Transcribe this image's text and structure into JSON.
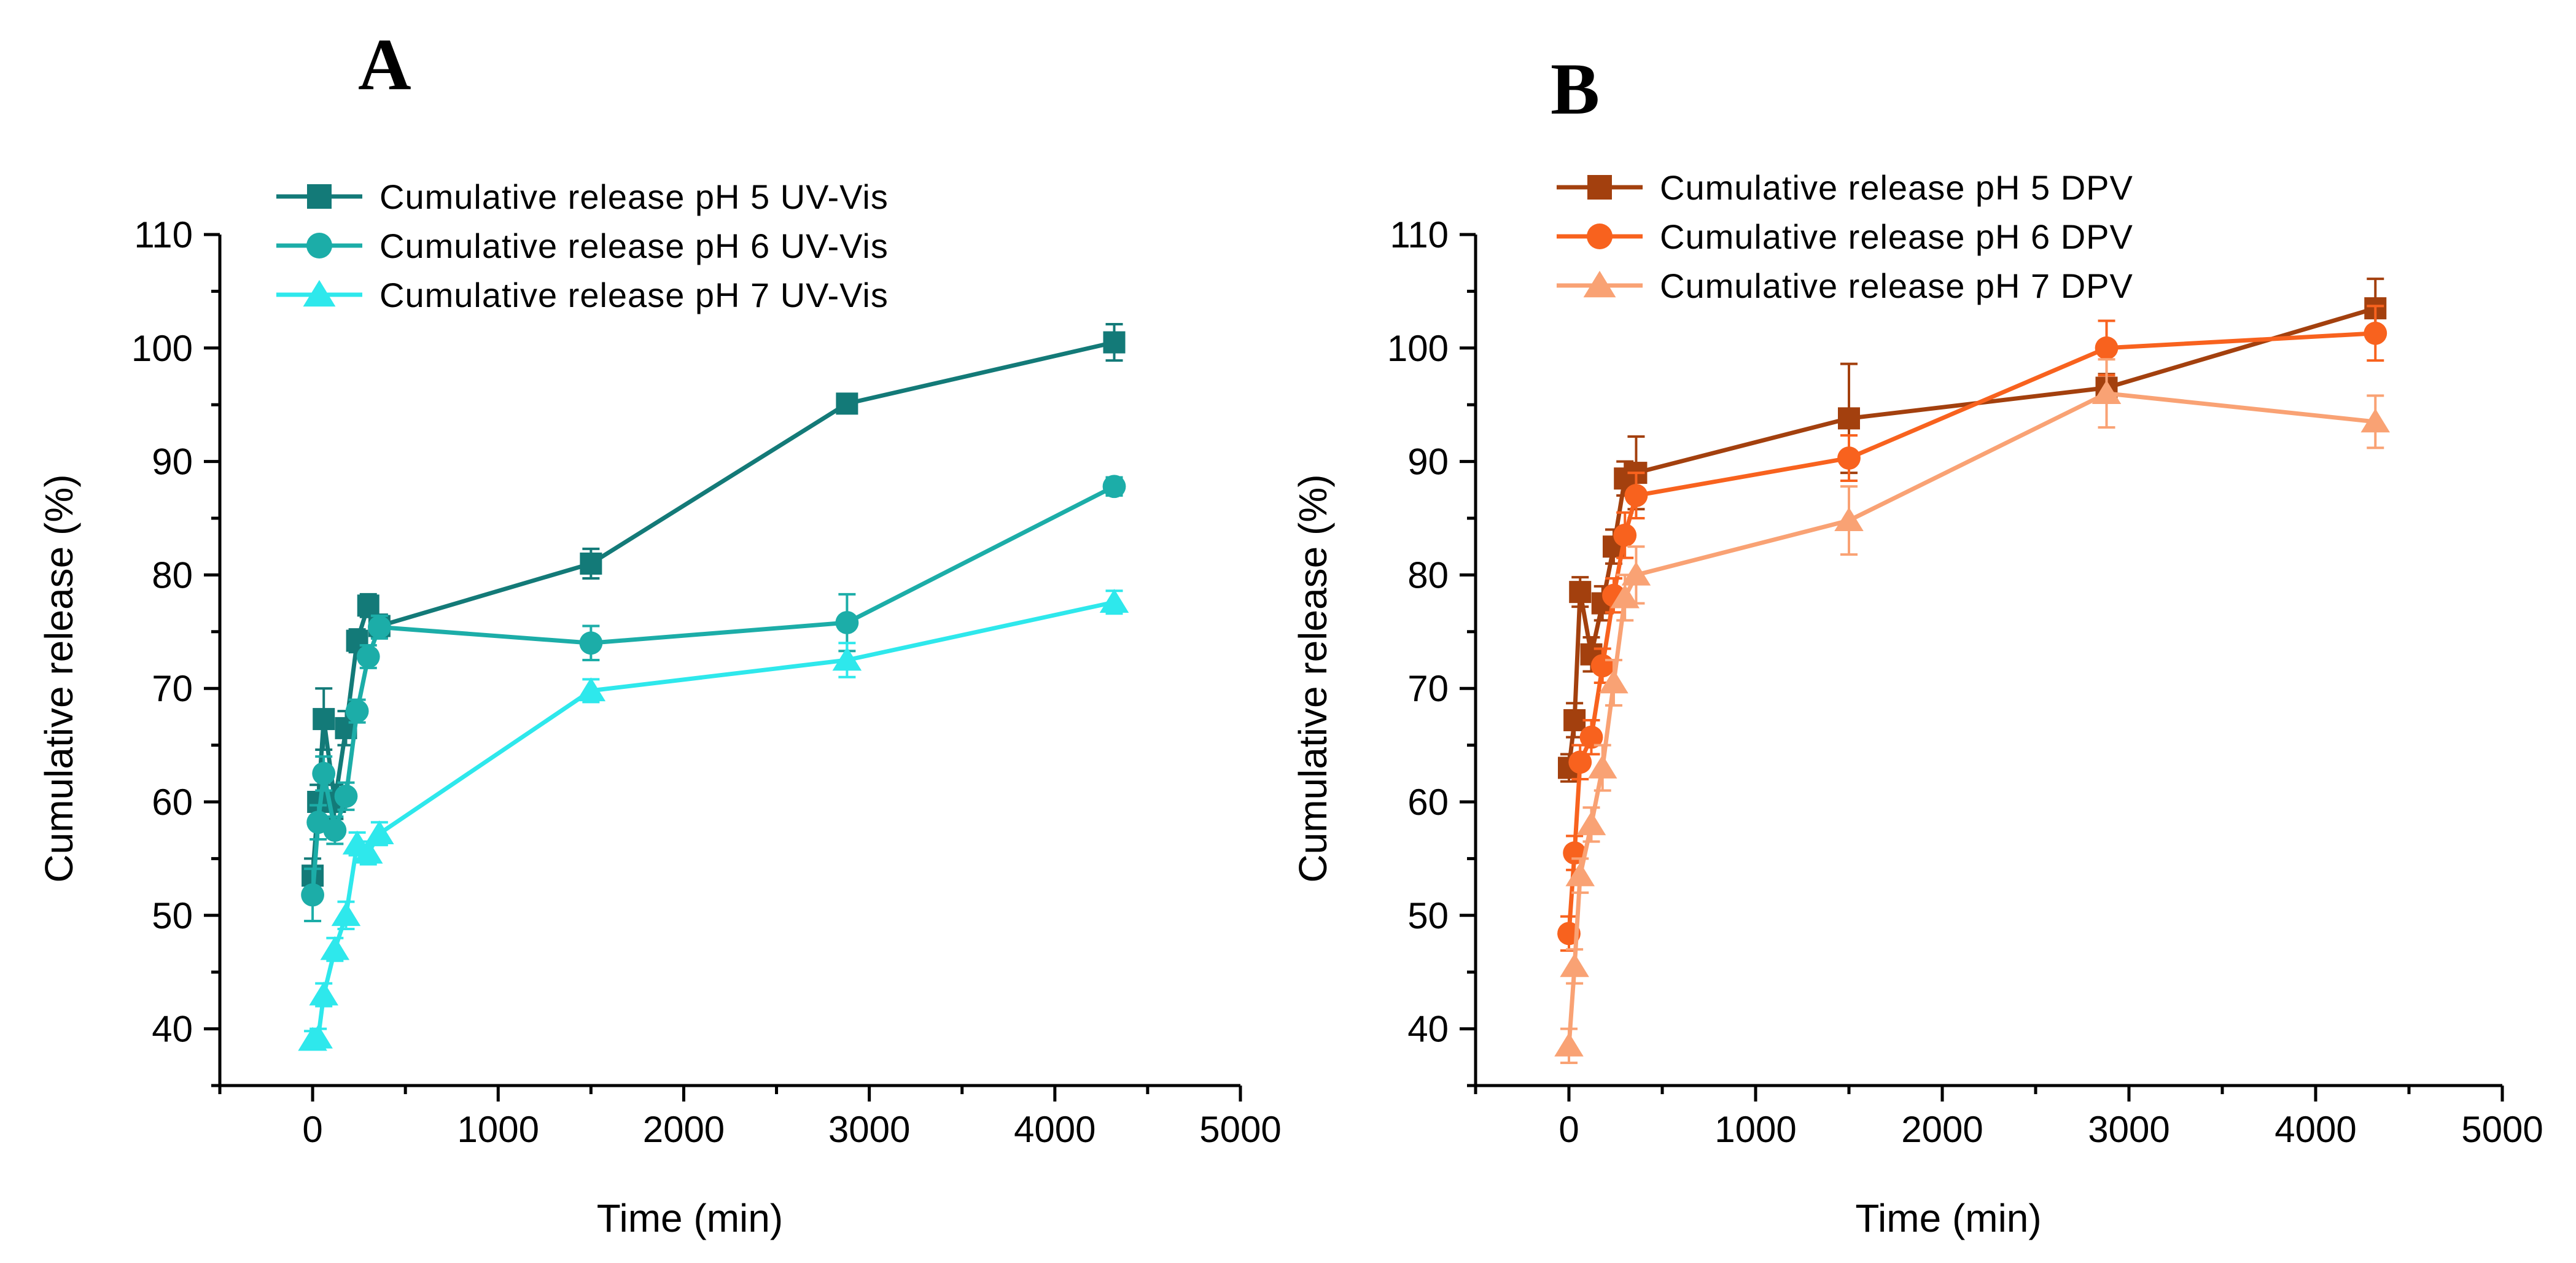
{
  "chart_data": [
    {
      "panel": "A",
      "type": "line",
      "xlabel": "Time (min)",
      "ylabel": "Cumulative release (%)",
      "xlim": [
        -500,
        5000
      ],
      "ylim": [
        35,
        110
      ],
      "xticks": [
        0,
        1000,
        2000,
        3000,
        4000,
        5000
      ],
      "yticks": [
        40,
        50,
        60,
        70,
        80,
        90,
        100,
        110
      ],
      "legend_position": "top-left",
      "series": [
        {
          "name": "Cumulative release pH 5 UV-Vis",
          "marker": "square",
          "color": "#137a78",
          "x": [
            0,
            30,
            60,
            120,
            180,
            240,
            300,
            360,
            1500,
            2880,
            4320
          ],
          "y": [
            53.5,
            60.0,
            67.3,
            60.0,
            66.5,
            74.2,
            77.3,
            75.5,
            81.0,
            95.1,
            100.5
          ],
          "err": [
            1.5,
            1.5,
            2.7,
            1.5,
            1.5,
            1.0,
            1.0,
            1.0,
            1.3,
            0.8,
            1.6
          ]
        },
        {
          "name": "Cumulative release pH 6 UV-Vis",
          "marker": "circle",
          "color": "#1cada8",
          "x": [
            0,
            30,
            60,
            120,
            180,
            240,
            300,
            360,
            1500,
            2880,
            4320
          ],
          "y": [
            51.8,
            58.2,
            62.5,
            57.5,
            60.5,
            68.0,
            72.8,
            75.4,
            74.0,
            75.8,
            87.8
          ],
          "err": [
            2.3,
            1.5,
            1.5,
            1.2,
            1.2,
            1.0,
            1.0,
            1.0,
            1.5,
            2.5,
            0.8
          ]
        },
        {
          "name": "Cumulative release pH 7 UV-Vis",
          "marker": "triangle",
          "color": "#2ee8ec",
          "x": [
            0,
            30,
            60,
            120,
            180,
            240,
            300,
            360,
            1500,
            2880,
            4320
          ],
          "y": [
            39.0,
            39.2,
            43.0,
            47.0,
            50.0,
            56.3,
            55.5,
            57.2,
            69.8,
            72.5,
            77.6
          ],
          "err": [
            0.8,
            0.8,
            1.0,
            1.0,
            1.2,
            1.0,
            1.0,
            1.0,
            1.0,
            1.5,
            1.0
          ]
        }
      ]
    },
    {
      "panel": "B",
      "type": "line",
      "xlabel": "Time (min)",
      "ylabel": "Cumulative release (%)",
      "xlim": [
        -500,
        5000
      ],
      "ylim": [
        35,
        110
      ],
      "xticks": [
        0,
        1000,
        2000,
        3000,
        4000,
        5000
      ],
      "yticks": [
        40,
        50,
        60,
        70,
        80,
        90,
        100,
        110
      ],
      "legend_position": "top-left",
      "series": [
        {
          "name": "Cumulative release pH 5 DPV",
          "marker": "square",
          "color": "#a3400e",
          "x": [
            0,
            30,
            60,
            120,
            180,
            240,
            300,
            360,
            1500,
            2880,
            4320
          ],
          "y": [
            63.0,
            67.2,
            78.5,
            73.0,
            77.5,
            82.5,
            88.5,
            89.0,
            93.8,
            96.5,
            103.5
          ],
          "err": [
            1.2,
            1.5,
            1.3,
            1.5,
            1.5,
            1.5,
            1.5,
            3.2,
            4.8,
            1.2,
            2.6
          ]
        },
        {
          "name": "Cumulative release pH 6 DPV",
          "marker": "circle",
          "color": "#f8621e",
          "x": [
            0,
            30,
            60,
            120,
            180,
            240,
            300,
            360,
            1500,
            2880,
            4320
          ],
          "y": [
            48.4,
            55.5,
            63.5,
            65.7,
            72.0,
            78.2,
            83.5,
            87.0,
            90.3,
            100.0,
            101.3
          ],
          "err": [
            1.5,
            1.5,
            1.5,
            1.5,
            1.5,
            1.5,
            2.0,
            2.0,
            2.0,
            2.4,
            2.4
          ]
        },
        {
          "name": "Cumulative release pH 7 DPV",
          "marker": "triangle",
          "color": "#f9a274",
          "x": [
            0,
            30,
            60,
            120,
            180,
            240,
            300,
            360,
            1500,
            2880,
            4320
          ],
          "y": [
            38.5,
            45.5,
            53.5,
            58.0,
            63.0,
            70.5,
            78.0,
            80.0,
            84.8,
            96.0,
            93.5
          ],
          "err": [
            1.5,
            1.5,
            1.5,
            1.5,
            2.0,
            2.0,
            2.0,
            2.5,
            3.0,
            3.0,
            2.3
          ]
        }
      ]
    }
  ]
}
